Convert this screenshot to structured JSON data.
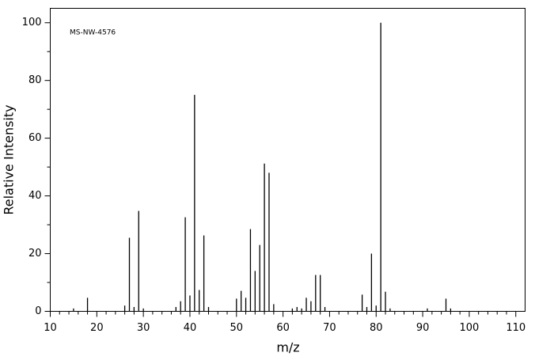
{
  "chart_data": {
    "type": "bar",
    "annotation": "MS-NW-4576",
    "xlabel": "m/z",
    "ylabel": "Relative Intensity",
    "x": [
      15,
      18,
      26,
      27,
      28,
      29,
      30,
      37,
      38,
      39,
      40,
      41,
      42,
      43,
      44,
      50,
      51,
      52,
      53,
      54,
      55,
      56,
      57,
      58,
      62,
      63,
      64,
      65,
      66,
      67,
      68,
      69,
      77,
      78,
      79,
      80,
      81,
      82,
      83,
      91,
      95,
      96
    ],
    "values": [
      1,
      4.7,
      2,
      25.5,
      1.5,
      34.8,
      1,
      1.5,
      3.5,
      32.6,
      5.5,
      75,
      7.4,
      26.3,
      1.5,
      4.4,
      7.1,
      4.7,
      28.5,
      14,
      23,
      51.2,
      48,
      2.5,
      1,
      1.5,
      1,
      4.7,
      3.5,
      12.6,
      12.6,
      1.5,
      5.8,
      1.5,
      20,
      2,
      100,
      6.8,
      1,
      1,
      4.4,
      1
    ],
    "color": "#000000",
    "xlim": [
      10,
      112
    ],
    "ylim": [
      0,
      105
    ],
    "xticks": [
      10,
      20,
      30,
      40,
      50,
      60,
      70,
      80,
      90,
      100,
      110
    ],
    "xminorticks": [
      12,
      14,
      16,
      18,
      22,
      24,
      26,
      28,
      32,
      34,
      36,
      38,
      42,
      44,
      46,
      48,
      52,
      54,
      56,
      58,
      62,
      64,
      66,
      68,
      72,
      74,
      76,
      78,
      82,
      84,
      86,
      88,
      92,
      94,
      96,
      98,
      102,
      104,
      106,
      108
    ],
    "yticks": [
      0,
      20,
      40,
      60,
      80,
      100
    ],
    "yminorticks": [
      10,
      30,
      50,
      70,
      90
    ]
  }
}
